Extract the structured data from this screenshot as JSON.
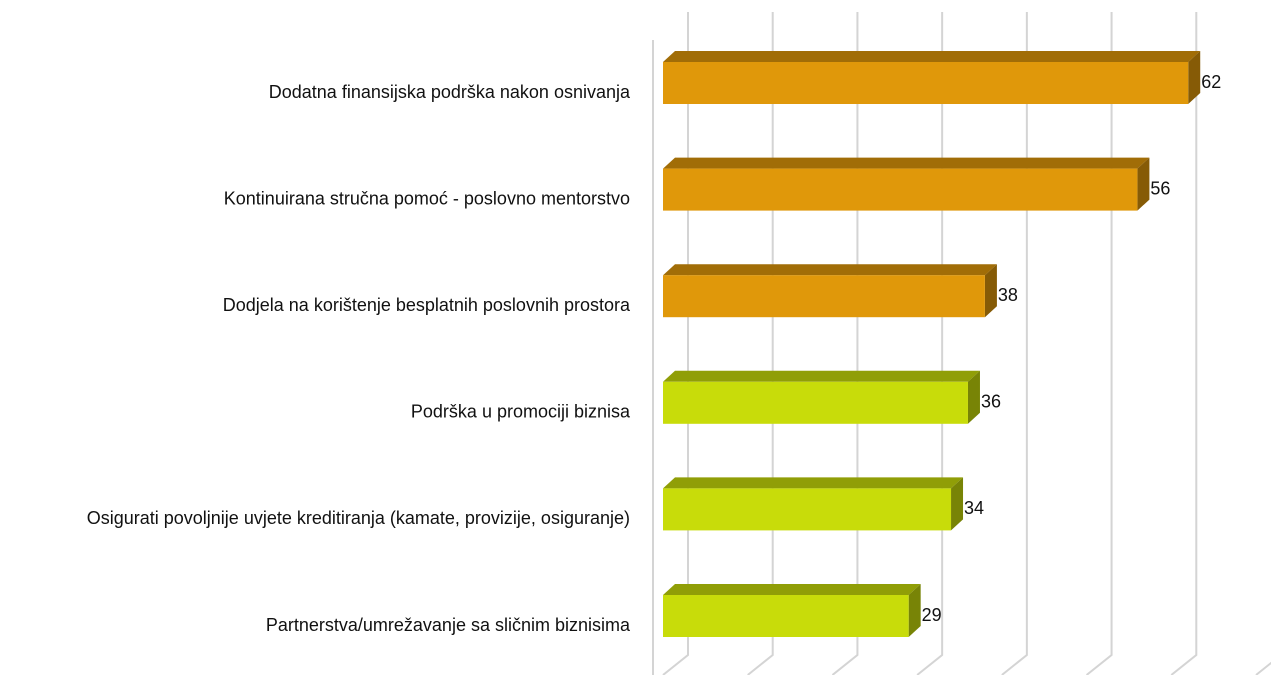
{
  "chart_data": {
    "type": "bar",
    "orientation": "horizontal",
    "categories": [
      "Dodatna finansijska podrška nakon osnivanja",
      "Kontinuirana stručna pomoć - poslovno mentorstvo",
      "Dodjela na korištenje besplatnih poslovnih prostora",
      "Podrška u promociji biznisa",
      "Osigurati povoljnije uvjete kreditiranja (kamate, provizije, osiguranje)",
      "Partnerstva/umrežavanje sa sličnim biznisima"
    ],
    "values": [
      62,
      56,
      38,
      36,
      34,
      29
    ],
    "colors": [
      "#e0980a",
      "#e0980a",
      "#e0980a",
      "#c8dc0a",
      "#c8dc0a",
      "#c8dc0a"
    ],
    "xlim": [
      0,
      70
    ],
    "xticks": [
      0,
      10,
      20,
      30,
      40,
      50,
      60,
      70
    ],
    "grid": true
  }
}
